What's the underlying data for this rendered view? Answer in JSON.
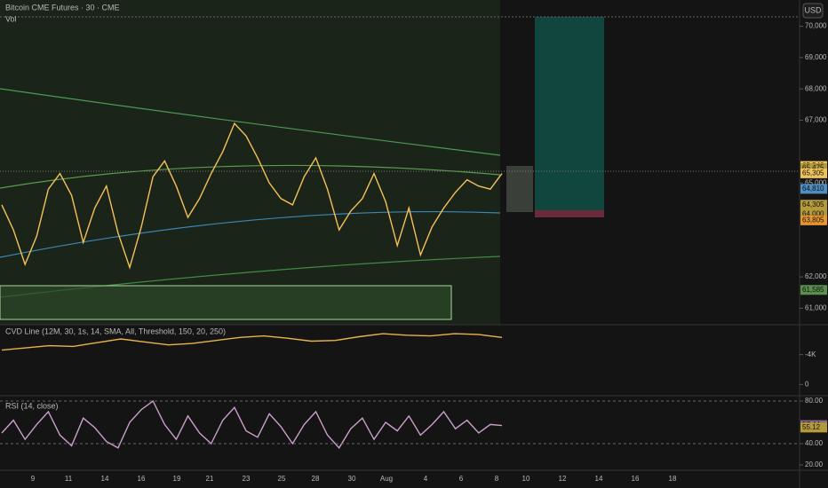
{
  "header": {
    "title": "Bitcoin CME Futures · 30 · CME",
    "volume_label": "Vol",
    "currency": "USD"
  },
  "price": {
    "ylim": [
      60700,
      70300
    ],
    "yticks": [
      {
        "value": 70000,
        "label": "70,000"
      },
      {
        "value": 69000,
        "label": "69,000"
      },
      {
        "value": 68000,
        "label": "68,000"
      },
      {
        "value": 67000,
        "label": "67,000"
      },
      {
        "value": 65000,
        "label": "65,000"
      },
      {
        "value": 62000,
        "label": "62,000"
      },
      {
        "value": 61000,
        "label": "61,000"
      }
    ],
    "badges": [
      {
        "value": 65540,
        "label": "65,540",
        "color": "#f0c35a"
      },
      {
        "value": 65475,
        "label": "65,475",
        "color": "#b59a3a"
      },
      {
        "value": 65305,
        "label": "65,305",
        "color": "#f0c35a"
      },
      {
        "value": 64810,
        "label": "64,810",
        "color": "#4f8fbf"
      },
      {
        "value": 64305,
        "label": "64,305",
        "color": "#b59a3a"
      },
      {
        "value": 64000,
        "label": "64,000",
        "color": "#b59a3a"
      },
      {
        "value": 63805,
        "label": "63,805",
        "color": "#e8952e"
      },
      {
        "value": 61585,
        "label": "61,585",
        "color": "#5a8f4e"
      }
    ],
    "color": "#f5c05a",
    "values": [
      64300,
      63500,
      62400,
      63300,
      64800,
      65300,
      64600,
      63100,
      64200,
      64900,
      63400,
      62300,
      63600,
      65200,
      65700,
      64900,
      63900,
      64500,
      65300,
      66000,
      66900,
      66500,
      65800,
      65000,
      64500,
      64300,
      65200,
      65800,
      64800,
      63500,
      64100,
      64500,
      65300,
      64400,
      63000,
      64200,
      62700,
      63600,
      64200,
      64700,
      65100,
      64900,
      64800,
      65300
    ]
  },
  "cvd": {
    "label": "CVD Line (12M, 30, 1s, 14, SMA, All, Threshold, 150, 20, 250)",
    "ylim": [
      1500,
      -8000
    ],
    "yticks": [
      0,
      {
        "value": -4000,
        "label": "-4K"
      }
    ],
    "color": "#e8b44a",
    "values": [
      -4600,
      -4900,
      -5200,
      -5100,
      -5600,
      -6100,
      -5700,
      -5300,
      -5500,
      -5900,
      -6300,
      -6500,
      -6200,
      -5800,
      -5900,
      -6400,
      -6800,
      -6600,
      -6500,
      -6800,
      -6700,
      -6300
    ]
  },
  "rsi": {
    "label": "RSI (14, close)",
    "ylim": [
      15,
      85
    ],
    "yticks": [
      {
        "value": 80,
        "label": "80.00"
      },
      {
        "value": 40,
        "label": "40.00"
      },
      {
        "value": 20,
        "label": "20.00"
      }
    ],
    "color": "#c9a0c9",
    "badges": [
      {
        "value": 57.44,
        "label": "57.44",
        "color": "#8a6a8a"
      },
      {
        "value": 55.12,
        "label": "55.12",
        "color": "#b59a3a"
      }
    ],
    "values": [
      50,
      62,
      44,
      58,
      70,
      48,
      38,
      64,
      55,
      42,
      36,
      60,
      72,
      80,
      58,
      44,
      66,
      50,
      40,
      62,
      74,
      52,
      46,
      68,
      56,
      40,
      58,
      70,
      48,
      36,
      54,
      64,
      44,
      60,
      52,
      66,
      48,
      58,
      70,
      54,
      62,
      50,
      58,
      57
    ]
  },
  "dates": [
    "9",
    "11",
    "14",
    "16",
    "19",
    "21",
    "23",
    "25",
    "28",
    "30",
    "Aug",
    "4",
    "6",
    "8",
    "10",
    "12",
    "14",
    "16",
    "18"
  ]
}
